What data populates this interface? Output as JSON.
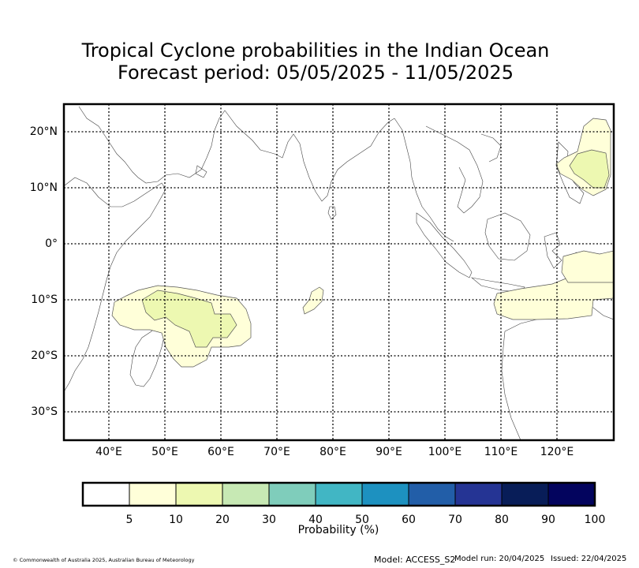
{
  "title_line1": "Tropical Cyclone probabilities in the Indian Ocean",
  "title_line2": "Forecast period: 05/05/2025 - 11/05/2025",
  "map": {
    "lon_range": [
      32,
      130
    ],
    "lat_range": [
      -35,
      25
    ],
    "lon_ticks": [
      "40°E",
      "50°E",
      "60°E",
      "70°E",
      "80°E",
      "90°E",
      "100°E",
      "110°E",
      "120°E"
    ],
    "lat_ticks": [
      "20°N",
      "10°N",
      "0°",
      "10°S",
      "20°S",
      "30°S"
    ],
    "gridlines": true
  },
  "colorbar": {
    "title": "Probability (%)",
    "colors": [
      "#ffffff",
      "#ffffd9",
      "#edf8b1",
      "#c7e9b4",
      "#7fcdbb",
      "#41b6c4",
      "#1d91c0",
      "#225ea8",
      "#253494",
      "#081d58",
      "#03045e"
    ],
    "ticks": [
      "5",
      "10",
      "20",
      "30",
      "40",
      "50",
      "60",
      "70",
      "80",
      "90",
      "100"
    ]
  },
  "footer": {
    "copyright": "© Commonwealth of Australia 2025, Australian Bureau of Meteorology",
    "model": "Model: ACCESS_S2",
    "model_run": "Model run: 20/04/2025",
    "issued": "Issued: 22/04/2025"
  }
}
